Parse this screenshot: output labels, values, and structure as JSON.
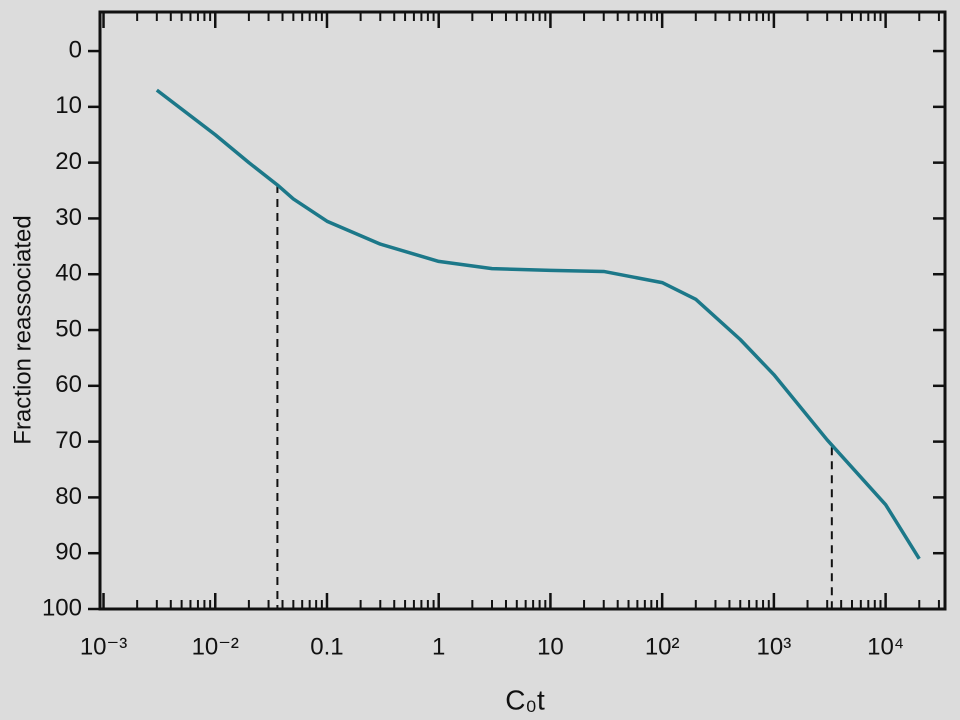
{
  "chart_data": {
    "type": "line",
    "y_label": "Fraction reassociated",
    "x_label": "C₀t",
    "log_x": true,
    "y_inverted": true,
    "xlim": [
      0.00093,
      34000
    ],
    "ylim": [
      -7,
      100
    ],
    "xticks": [
      {
        "value": 0.001,
        "label": "10⁻³"
      },
      {
        "value": 0.01,
        "label": "10⁻²"
      },
      0.1,
      1,
      10,
      {
        "value": 100,
        "label": "10²"
      },
      {
        "value": 1000,
        "label": "10³"
      },
      {
        "value": 10000,
        "label": "10⁴"
      }
    ],
    "minor_xticks": [
      0.002,
      0.003,
      0.004,
      0.005,
      0.006,
      0.007,
      0.008,
      0.009,
      0.02,
      0.03,
      0.04,
      0.05,
      0.06,
      0.07,
      0.08,
      0.09,
      0.2,
      0.3,
      0.4,
      0.5,
      0.6,
      0.7,
      0.8,
      0.9,
      2,
      3,
      4,
      5,
      6,
      7,
      8,
      9,
      20,
      30,
      40,
      50,
      60,
      70,
      80,
      90,
      200,
      300,
      400,
      500,
      600,
      700,
      800,
      900,
      2000,
      3000,
      4000,
      5000,
      6000,
      7000,
      8000,
      9000,
      20000,
      30000
    ],
    "yticks": [
      0,
      10,
      20,
      30,
      40,
      50,
      60,
      70,
      80,
      90,
      100
    ],
    "x": [
      0.003,
      0.01,
      0.02,
      0.036,
      0.05,
      0.1,
      0.3,
      1,
      3,
      10,
      30,
      100,
      200,
      500,
      1000,
      3000,
      10000,
      20000
    ],
    "series": [
      {
        "color": "#1c7889",
        "values": [
          7,
          15,
          20,
          24,
          26.5,
          30.5,
          34.6,
          37.7,
          39,
          39.3,
          39.5,
          41.5,
          44.5,
          51.7,
          58,
          69.7,
          81.3,
          91
        ]
      }
    ],
    "reference_lines": [
      {
        "x": 0.036,
        "y": 24
      },
      {
        "x": 3300,
        "y": 71
      }
    ]
  }
}
